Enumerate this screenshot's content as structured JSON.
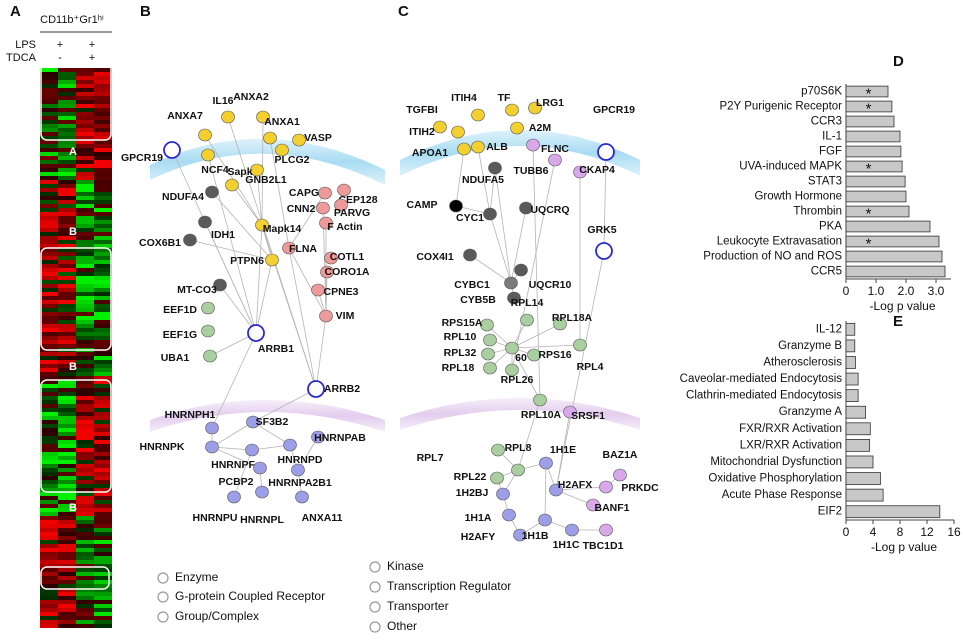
{
  "panel_labels": [
    "A",
    "B",
    "C",
    "D",
    "E"
  ],
  "heatmap": {
    "title": "CD11b⁺Gr1ʰⁱ",
    "rows": [
      {
        "label": "LPS",
        "values": [
          "+",
          "+"
        ]
      },
      {
        "label": "TDCA",
        "values": [
          "-",
          "+"
        ]
      }
    ],
    "clusters": [
      "A",
      "B",
      "B",
      "B"
    ]
  },
  "network_b": {
    "nodes": [
      {
        "label": "ANXA7",
        "color": "#f3cf2f"
      },
      {
        "label": "IL16",
        "color": "#f3cf2f"
      },
      {
        "label": "ANXA2",
        "color": "#f3cf2f"
      },
      {
        "label": "ANXA1",
        "color": "#f3cf2f"
      },
      {
        "label": "VASP",
        "color": "#f3cf2f"
      },
      {
        "label": "GPCR19",
        "color": "#2a2ad0"
      },
      {
        "label": "NCF4",
        "color": "#f3cf2f"
      },
      {
        "label": "PLCG2",
        "color": "#f3cf2f"
      },
      {
        "label": "GNB2L1",
        "color": "#f3cf2f"
      },
      {
        "label": "Sapk",
        "color": "#f3cf2f"
      },
      {
        "label": "NDUFA4",
        "color": "#5a5a5a"
      },
      {
        "label": "CAPG",
        "color": "#ef9a9a"
      },
      {
        "label": "CEP128",
        "color": "#ef9a9a"
      },
      {
        "label": "CNN2",
        "color": "#ef9a9a"
      },
      {
        "label": "PARVG",
        "color": "#ef9a9a"
      },
      {
        "label": "F Actin",
        "color": "#ef9a9a"
      },
      {
        "label": "Mapk14",
        "color": "#f3cf2f"
      },
      {
        "label": "IDH1",
        "color": "#5a5a5a"
      },
      {
        "label": "COX6B1",
        "color": "#5a5a5a"
      },
      {
        "label": "FLNA",
        "color": "#ef9a9a"
      },
      {
        "label": "COTL1",
        "color": "#ef9a9a"
      },
      {
        "label": "PTPN6",
        "color": "#f3cf2f"
      },
      {
        "label": "CORO1A",
        "color": "#ef9a9a"
      },
      {
        "label": "MT-CO3",
        "color": "#5a5a5a"
      },
      {
        "label": "CPNE3",
        "color": "#ef9a9a"
      },
      {
        "label": "EEF1D",
        "color": "#a9cfa0"
      },
      {
        "label": "VIM",
        "color": "#ef9a9a"
      },
      {
        "label": "EEF1G",
        "color": "#a9cfa0"
      },
      {
        "label": "ARRB1",
        "color": "#2a2ad0"
      },
      {
        "label": "UBA1",
        "color": "#a9cfa0"
      },
      {
        "label": "ARRB2",
        "color": "#2a2ad0"
      },
      {
        "label": "HNRNPH1",
        "color": "#9d9ee8"
      },
      {
        "label": "SF3B2",
        "color": "#9d9ee8"
      },
      {
        "label": "HNRNPAB",
        "color": "#9d9ee8"
      },
      {
        "label": "HNRNPK",
        "color": "#9d9ee8"
      },
      {
        "label": "HNRNPF",
        "color": "#9d9ee8"
      },
      {
        "label": "HNRNPD",
        "color": "#9d9ee8"
      },
      {
        "label": "PCBP2",
        "color": "#9d9ee8"
      },
      {
        "label": "HNRNPA2B1",
        "color": "#9d9ee8"
      },
      {
        "label": "HNRNPU",
        "color": "#9d9ee8"
      },
      {
        "label": "HNRNPL",
        "color": "#9d9ee8"
      },
      {
        "label": "ANXA11",
        "color": "#9d9ee8"
      }
    ]
  },
  "network_c": {
    "nodes": [
      {
        "label": "TGFBI",
        "color": "#f3cf2f"
      },
      {
        "label": "ITIH4",
        "color": "#f3cf2f"
      },
      {
        "label": "TF",
        "color": "#f3cf2f"
      },
      {
        "label": "LRG1",
        "color": "#f3cf2f"
      },
      {
        "label": "ITIH2",
        "color": "#f3cf2f"
      },
      {
        "label": "A2M",
        "color": "#f3cf2f"
      },
      {
        "label": "ALB",
        "color": "#f3cf2f"
      },
      {
        "label": "FLNC",
        "color": "#d9a8ea"
      },
      {
        "label": "APOA1",
        "color": "#f3cf2f"
      },
      {
        "label": "GPCR19",
        "color": "#2a2ad0"
      },
      {
        "label": "TUBB6",
        "color": "#d9a8ea"
      },
      {
        "label": "CKAP4",
        "color": "#d9a8ea"
      },
      {
        "label": "NDUFA5",
        "color": "#5a5a5a"
      },
      {
        "label": "CAMP",
        "color": "#000000"
      },
      {
        "label": "CYC1",
        "color": "#5a5a5a"
      },
      {
        "label": "UQCRQ",
        "color": "#5a5a5a"
      },
      {
        "label": "GRK5",
        "color": "#2a2ad0"
      },
      {
        "label": "COX4I1",
        "color": "#5a5a5a"
      },
      {
        "label": "CYBC1",
        "color": "#7a7a7a"
      },
      {
        "label": "UQCR10",
        "color": "#5a5a5a"
      },
      {
        "label": "CYB5B",
        "color": "#5a5a5a"
      },
      {
        "label": "RPL14",
        "color": "#a9cfa0"
      },
      {
        "label": "RPS15A",
        "color": "#a9cfa0"
      },
      {
        "label": "RPL18A",
        "color": "#a9cfa0"
      },
      {
        "label": "RPL10",
        "color": "#a9cfa0"
      },
      {
        "label": "60",
        "color": "#a9cfa0"
      },
      {
        "label": "RPL32",
        "color": "#a9cfa0"
      },
      {
        "label": "RPS16",
        "color": "#a9cfa0"
      },
      {
        "label": "RPL4",
        "color": "#a9cfa0"
      },
      {
        "label": "RPL18",
        "color": "#a9cfa0"
      },
      {
        "label": "RPL26",
        "color": "#a9cfa0"
      },
      {
        "label": "RPL10A",
        "color": "#a9cfa0"
      },
      {
        "label": "SRSF1",
        "color": "#d9a8ea"
      },
      {
        "label": "BAZ1A",
        "color": "#d9a8ea"
      },
      {
        "label": "RPL7",
        "color": "#a9cfa0"
      },
      {
        "label": "RPL8",
        "color": "#a9cfa0"
      },
      {
        "label": "1H1E",
        "color": "#9d9ee8"
      },
      {
        "label": "RPL22",
        "color": "#a9cfa0"
      },
      {
        "label": "H2AFX",
        "color": "#9d9ee8"
      },
      {
        "label": "PRKDC",
        "color": "#d9a8ea"
      },
      {
        "label": "1H2BJ",
        "color": "#9d9ee8"
      },
      {
        "label": "BANF1",
        "color": "#d9a8ea"
      },
      {
        "label": "1H1A",
        "color": "#9d9ee8"
      },
      {
        "label": "H2AFY",
        "color": "#9d9ee8"
      },
      {
        "label": "1H1B",
        "color": "#9d9ee8"
      },
      {
        "label": "1H1C",
        "color": "#9d9ee8"
      },
      {
        "label": "TBC1D1",
        "color": "#d9a8ea"
      }
    ]
  },
  "legend": [
    "Enzyme",
    "G-protein Coupled Receptor",
    "Group/Complex",
    "Kinase",
    "Transcription Regulator",
    "Transporter",
    "Other"
  ],
  "chart_data": [
    {
      "type": "bar",
      "orientation": "horizontal",
      "xlabel": "-Log p value",
      "color": "#c8c8c8",
      "categories": [
        "p70S6K",
        "P2Y Purigenic Receptor",
        "CCR3",
        "IL-1",
        "FGF",
        "UVA-induced MAPK",
        "STAT3",
        "Growth Hormone",
        "Thrombin",
        "PKA",
        "Leukocyte Extravasation",
        "Production of NO and ROS",
        "CCR5"
      ],
      "values": [
        1.4,
        1.53,
        1.6,
        1.8,
        1.83,
        1.87,
        1.97,
        2.0,
        2.1,
        2.8,
        3.1,
        3.2,
        3.3
      ],
      "markers": [
        "*",
        "*",
        null,
        null,
        null,
        "*",
        null,
        null,
        "*",
        null,
        "*",
        null,
        null
      ],
      "xlim": [
        0,
        3.5
      ],
      "xticks": [
        0,
        {
          "value": 1,
          "label": "1.0"
        },
        {
          "value": 2,
          "label": "2.0"
        },
        {
          "value": 3,
          "label": "3.0"
        }
      ]
    },
    {
      "type": "bar",
      "orientation": "horizontal",
      "xlabel": "-Log p value",
      "color": "#c8c8c8",
      "categories": [
        "IL-12",
        "Granzyme B",
        "Atherosclerosis",
        "Caveolar-mediated  Endocytosis",
        "Clathrin-mediated  Endocytosis",
        "Granzyme A",
        "FXR/RXR  Activation",
        "LXR/RXR  Activation",
        "Mitochondrial Dysfunction",
        "Oxidative Phosphorylation",
        "Acute Phase Response",
        "EIF2"
      ],
      "values": [
        1.3,
        1.3,
        1.4,
        1.8,
        1.8,
        2.9,
        3.6,
        3.5,
        4.0,
        5.1,
        5.5,
        13.9
      ],
      "xlim": [
        0,
        16
      ],
      "xticks": [
        0,
        4,
        8,
        12,
        16
      ]
    }
  ]
}
